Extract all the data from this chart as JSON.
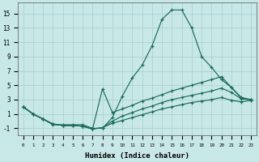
{
  "xlabel": "Humidex (Indice chaleur)",
  "line_color": "#1a6b5a",
  "bg_color": "#c8e8e8",
  "grid_color": "#a8cccc",
  "x_ticks": [
    0,
    1,
    2,
    3,
    4,
    5,
    6,
    7,
    8,
    9,
    10,
    11,
    12,
    13,
    14,
    15,
    16,
    17,
    18,
    19,
    20,
    21,
    22,
    23
  ],
  "y_ticks": [
    -1,
    1,
    3,
    5,
    7,
    9,
    11,
    13,
    15
  ],
  "ylim": [
    -2.0,
    16.5
  ],
  "xlim": [
    -0.5,
    23.5
  ],
  "series": [
    {
      "x": [
        0,
        1,
        2,
        3,
        4,
        5,
        6,
        7,
        8,
        9,
        10,
        11,
        12,
        13,
        14,
        15,
        16,
        17,
        18,
        19,
        20,
        21,
        22,
        23
      ],
      "y": [
        2,
        1,
        0.3,
        -0.5,
        -0.5,
        -0.5,
        -0.5,
        -1.0,
        -1.0,
        0.5,
        3.5,
        6.0,
        7.8,
        10.5,
        14.2,
        15.5,
        15.5,
        13.0,
        9.0,
        7.5,
        5.8,
        4.7,
        3.2,
        3.0
      ]
    },
    {
      "x": [
        0,
        1,
        2,
        3,
        4,
        5,
        6,
        7,
        8,
        9,
        10,
        11,
        12,
        13,
        14,
        15,
        16,
        17,
        18,
        19,
        20,
        21,
        22,
        23
      ],
      "y": [
        2,
        1,
        0.3,
        -0.4,
        -0.6,
        -0.6,
        -0.7,
        -1.1,
        4.5,
        1.2,
        1.7,
        2.2,
        2.8,
        3.2,
        3.7,
        4.2,
        4.6,
        5.0,
        5.4,
        5.8,
        6.2,
        4.7,
        3.3,
        3.0
      ]
    },
    {
      "x": [
        0,
        1,
        2,
        3,
        4,
        5,
        6,
        7,
        8,
        9,
        10,
        11,
        12,
        13,
        14,
        15,
        16,
        17,
        18,
        19,
        20,
        21,
        22,
        23
      ],
      "y": [
        2,
        1,
        0.3,
        -0.4,
        -0.6,
        -0.6,
        -0.7,
        -1.1,
        -0.9,
        0.0,
        0.7,
        1.2,
        1.7,
        2.1,
        2.6,
        3.0,
        3.3,
        3.6,
        3.9,
        4.2,
        4.6,
        4.0,
        3.1,
        3.0
      ]
    },
    {
      "x": [
        0,
        1,
        2,
        3,
        4,
        5,
        6,
        7,
        8,
        9,
        10,
        11,
        12,
        13,
        14,
        15,
        16,
        17,
        18,
        19,
        20,
        21,
        22,
        23
      ],
      "y": [
        2,
        1,
        0.3,
        -0.4,
        -0.6,
        -0.6,
        -0.7,
        -1.1,
        -0.9,
        -0.3,
        0.1,
        0.5,
        0.9,
        1.3,
        1.7,
        2.0,
        2.3,
        2.6,
        2.8,
        3.0,
        3.3,
        2.9,
        2.7,
        2.9
      ]
    }
  ]
}
